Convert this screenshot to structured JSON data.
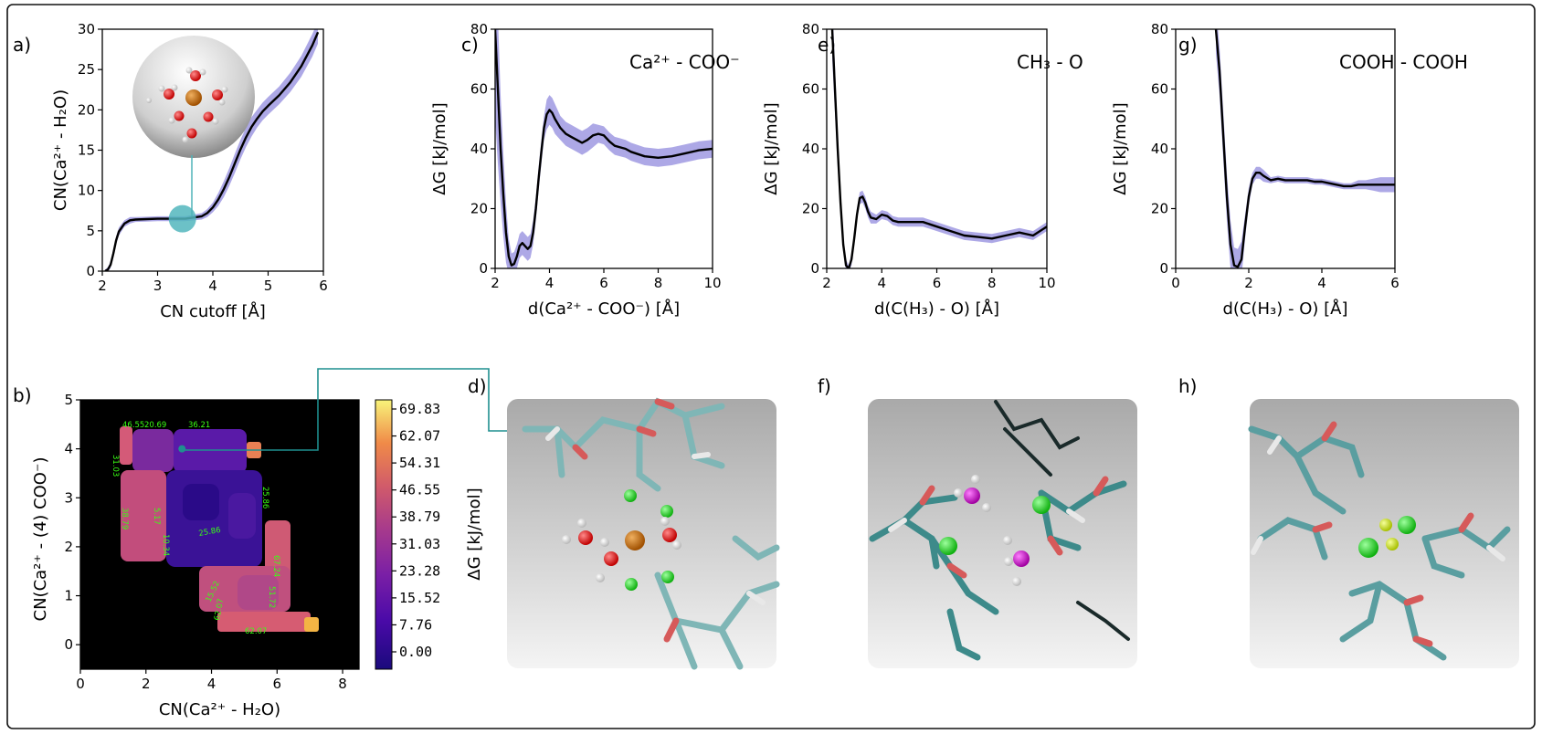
{
  "panels": {
    "a": {
      "label": "a)"
    },
    "b": {
      "label": "b)"
    },
    "c": {
      "label": "c)",
      "annotation": "Ca²⁺ - COO⁻"
    },
    "d": {
      "label": "d)"
    },
    "e": {
      "label": "e)",
      "annotation": "CH₃ - O"
    },
    "f": {
      "label": "f)"
    },
    "g": {
      "label": "g)",
      "annotation": "COOH - COOH"
    },
    "h": {
      "label": "h)"
    }
  },
  "chart_data": [
    {
      "id": "a",
      "type": "line",
      "xlabel": "CN cutoff [Å]",
      "ylabel": "CN(Ca²⁺ - H₂O)",
      "xlim": [
        2,
        6
      ],
      "ylim": [
        0,
        30
      ],
      "xticks": [
        "2",
        "3",
        "4",
        "5",
        "6"
      ],
      "yticks": [
        "0",
        "5",
        "10",
        "15",
        "20",
        "25",
        "30"
      ],
      "x": [
        2.05,
        2.1,
        2.15,
        2.2,
        2.25,
        2.3,
        2.4,
        2.5,
        2.6,
        2.8,
        3.0,
        3.2,
        3.5,
        3.8,
        3.9,
        4.0,
        4.1,
        4.2,
        4.3,
        4.4,
        4.5,
        4.6,
        4.7,
        4.8,
        4.9,
        5.0,
        5.2,
        5.4,
        5.6,
        5.8,
        5.9
      ],
      "y": [
        0,
        0.2,
        0.8,
        2.2,
        3.8,
        4.9,
        5.9,
        6.3,
        6.4,
        6.45,
        6.5,
        6.5,
        6.5,
        6.8,
        7.2,
        7.9,
        8.9,
        10.2,
        11.7,
        13.4,
        15.1,
        16.6,
        17.9,
        18.9,
        19.8,
        20.5,
        21.8,
        23.4,
        25.4,
        28.0,
        29.6
      ],
      "band": [
        0.2,
        0.3,
        0.4,
        0.5,
        0.5,
        0.5,
        0.4,
        0.4,
        0.3,
        0.3,
        0.3,
        0.3,
        0.3,
        0.4,
        0.5,
        0.6,
        0.8,
        1.0,
        1.1,
        1.2,
        1.2,
        1.2,
        1.2,
        1.1,
        1.1,
        1.1,
        1.1,
        1.2,
        1.3,
        1.4,
        1.4
      ],
      "inset": {
        "x": 3.45,
        "y": 6.5
      }
    },
    {
      "id": "c",
      "type": "line",
      "xlabel": "d(Ca²⁺ - COO⁻) [Å]",
      "ylabel": "ΔG [kJ/mol]",
      "xlim": [
        2,
        10
      ],
      "ylim": [
        0,
        80
      ],
      "xticks": [
        "2",
        "4",
        "6",
        "8",
        "10"
      ],
      "yticks": [
        "0",
        "20",
        "40",
        "60",
        "80"
      ],
      "x": [
        2.0,
        2.1,
        2.2,
        2.3,
        2.4,
        2.5,
        2.6,
        2.7,
        2.8,
        2.9,
        3.0,
        3.1,
        3.2,
        3.3,
        3.4,
        3.5,
        3.6,
        3.7,
        3.8,
        3.9,
        4.0,
        4.1,
        4.2,
        4.4,
        4.6,
        4.8,
        5.0,
        5.2,
        5.4,
        5.6,
        5.8,
        6.0,
        6.2,
        6.4,
        6.6,
        6.8,
        7.0,
        7.5,
        8.0,
        8.5,
        9.0,
        9.5,
        10.0
      ],
      "y": [
        80,
        60,
        40,
        25,
        12,
        4,
        1,
        1.5,
        4,
        7.5,
        8.5,
        7.5,
        6.5,
        7.5,
        12,
        20,
        30,
        39,
        47,
        51.5,
        53,
        52,
        50,
        47,
        45,
        44,
        43,
        42,
        43,
        44.5,
        45,
        44.5,
        42.5,
        41,
        40.5,
        40,
        39,
        37.5,
        37,
        37.5,
        38.5,
        39.5,
        40
      ],
      "band": [
        30,
        25,
        18,
        14,
        10,
        6,
        4,
        4,
        4,
        4,
        4,
        4,
        4,
        4,
        4,
        4,
        4,
        4,
        4,
        5,
        5,
        5,
        5,
        4,
        4,
        4,
        4,
        4,
        4,
        4,
        3,
        3,
        3,
        3,
        3,
        3,
        3,
        3,
        3,
        3,
        3,
        3,
        3
      ]
    },
    {
      "id": "e",
      "type": "line",
      "xlabel": "d(C(H₃) - O) [Å]",
      "ylabel": "ΔG [kJ/mol]",
      "xlim": [
        2,
        10
      ],
      "ylim": [
        0,
        80
      ],
      "xticks": [
        "2",
        "4",
        "6",
        "8",
        "10"
      ],
      "yticks": [
        "0",
        "20",
        "40",
        "60",
        "80"
      ],
      "x": [
        2.2,
        2.3,
        2.4,
        2.5,
        2.6,
        2.7,
        2.8,
        2.9,
        3.0,
        3.1,
        3.2,
        3.3,
        3.4,
        3.5,
        3.6,
        3.8,
        4.0,
        4.2,
        4.4,
        4.6,
        4.8,
        5.0,
        5.5,
        6.0,
        6.5,
        7.0,
        7.5,
        8.0,
        8.5,
        9.0,
        9.5,
        10.0
      ],
      "y": [
        80,
        60,
        40,
        22,
        8,
        1,
        0,
        3,
        10,
        18,
        23.5,
        24,
        22,
        19,
        17,
        16.5,
        18,
        17.5,
        16,
        15.5,
        15.5,
        15.5,
        15.5,
        14,
        12.5,
        11,
        10.5,
        10,
        11,
        12,
        11,
        14
      ],
      "band": [
        10,
        8,
        6,
        4,
        2,
        2,
        1,
        2,
        2,
        2,
        2,
        2,
        2,
        2,
        2,
        1.5,
        1.5,
        1.5,
        1.5,
        1.5,
        1.5,
        1.5,
        1.5,
        1.5,
        1.5,
        1.5,
        1.5,
        1.5,
        1.5,
        1.5,
        1.5,
        1.5
      ]
    },
    {
      "id": "g",
      "type": "line",
      "xlabel": "d(C(H₃) - O) [Å]",
      "ylabel": "ΔG [kJ/mol]",
      "xlim": [
        0,
        6
      ],
      "ylim": [
        0,
        80
      ],
      "xticks": [
        "0",
        "2",
        "4",
        "6"
      ],
      "yticks": [
        "0",
        "20",
        "40",
        "60",
        "80"
      ],
      "x": [
        1.1,
        1.2,
        1.3,
        1.4,
        1.5,
        1.6,
        1.7,
        1.8,
        1.9,
        2.0,
        2.1,
        2.2,
        2.3,
        2.4,
        2.6,
        2.8,
        3.0,
        3.2,
        3.4,
        3.6,
        3.8,
        4.0,
        4.2,
        4.4,
        4.6,
        4.8,
        5.0,
        5.2,
        5.4,
        5.6,
        5.8,
        6.0
      ],
      "y": [
        80,
        66,
        45,
        24,
        8,
        1,
        0.5,
        3,
        14,
        24,
        30,
        32,
        32,
        31,
        29.5,
        30,
        29.5,
        29.5,
        29.5,
        29.5,
        29,
        29,
        28.5,
        28,
        27.5,
        27.5,
        28,
        28,
        28,
        28,
        28,
        28
      ],
      "band": [
        8,
        8,
        8,
        8,
        8,
        6,
        6,
        6,
        4,
        3,
        2,
        2,
        2,
        2,
        1,
        1,
        1,
        1,
        1,
        1,
        1,
        1,
        1,
        1,
        1,
        1,
        1.5,
        1.5,
        2,
        2.5,
        2.5,
        2.5
      ]
    },
    {
      "id": "b",
      "type": "heatmap",
      "xlabel": "CN(Ca²⁺ - H₂O)",
      "ylabel": "CN(Ca²⁺ - (4) COO⁻)",
      "colorbar_label": "ΔG [kJ/mol]",
      "xlim": [
        0,
        8.5
      ],
      "ylim": [
        -0.5,
        5
      ],
      "xticks": [
        "0",
        "2",
        "4",
        "6",
        "8"
      ],
      "yticks": [
        "0",
        "1",
        "2",
        "3",
        "4",
        "5"
      ],
      "colorbar_ticks": [
        "69.83",
        "62.07",
        "54.31",
        "46.55",
        "38.79",
        "31.03",
        "23.28",
        "15.52",
        "7.76",
        "0.00"
      ],
      "contour_labels": [
        "46.55",
        "20.69",
        "36.21",
        "31.03",
        "25.86",
        "38.79",
        "5.17",
        "10.34",
        "25.86",
        "15.52",
        "67.24",
        "51.72",
        "62.07",
        "62.07"
      ],
      "marker": {
        "x": 3.1,
        "y": 4.0
      }
    }
  ]
}
